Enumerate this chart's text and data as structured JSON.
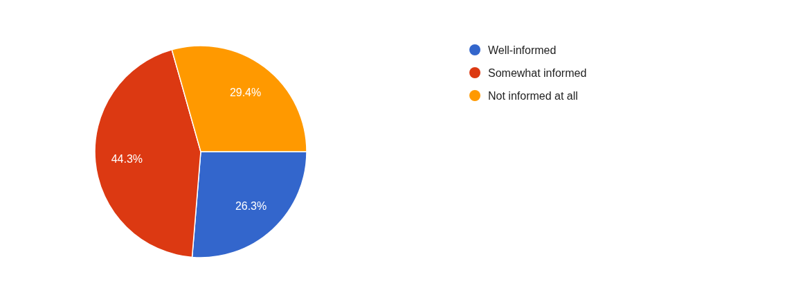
{
  "chart_data": {
    "type": "pie",
    "categories": [
      "Well-informed",
      "Somewhat informed",
      "Not informed at all"
    ],
    "values": [
      26.3,
      44.3,
      29.4
    ],
    "value_labels": [
      "26.3%",
      "44.3%",
      "29.4%"
    ],
    "colors": [
      "#3366cc",
      "#dc3912",
      "#ff9900"
    ],
    "legend": "right"
  }
}
